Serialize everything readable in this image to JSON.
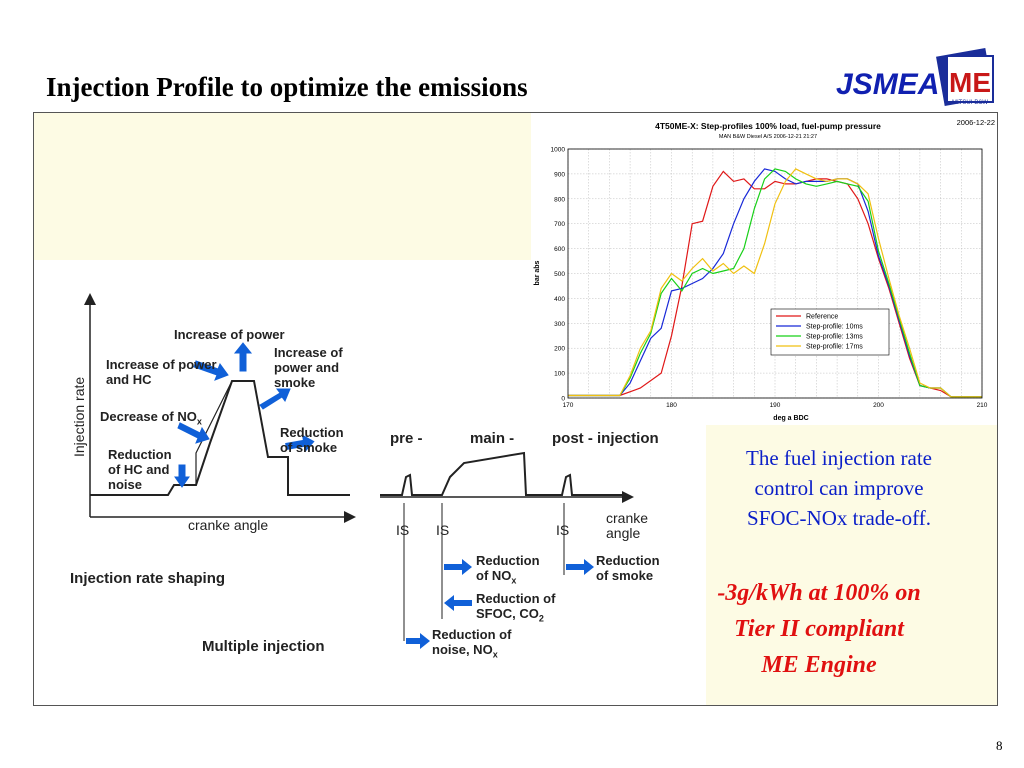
{
  "slide": {
    "title": "Injection Profile to optimize the emissions",
    "page_number": "8",
    "logo": {
      "text_left": "JSMEA",
      "text_right": "ME",
      "sublabel": "MITSUI·B&W"
    },
    "blue_text": [
      "The fuel injection rate",
      "control can improve",
      "SFOC-NOx trade-off."
    ],
    "red_text": [
      "-3g/kWh at 100% on",
      "Tier II compliant",
      "ME Engine"
    ]
  },
  "diagram": {
    "y_axis": "Injection rate",
    "x_axis": "cranke angle",
    "labels": {
      "increase_power": "Increase of power",
      "increase_power_hc": [
        "Increase of power",
        "and HC"
      ],
      "increase_power_smoke": [
        "Increase of",
        "power and",
        "smoke"
      ],
      "decrease_nox": "Decrease of NO",
      "decrease_nox_sub": "x",
      "reduction_hc_noise": [
        "Reduction",
        "of HC and",
        "noise"
      ],
      "reduction_smoke": [
        "Reduction",
        "of smoke"
      ],
      "caption": "Injection rate shaping"
    },
    "multi": {
      "pre": "pre -",
      "main": "main -",
      "post": "post - injection",
      "x_axis": [
        "cranke",
        "angle"
      ],
      "is_label": "IS",
      "red_nox": [
        "Reduction",
        "of NO"
      ],
      "red_nox_sub": "x",
      "red_smoke": [
        "Reduction",
        "of smoke"
      ],
      "red_sfoc": [
        "Reduction of",
        "SFOC, CO"
      ],
      "red_sfoc_sub": "2",
      "red_noise": [
        "Reduction of",
        "noise, NO"
      ],
      "red_noise_sub": "x",
      "caption": "Multiple injection"
    }
  },
  "chart_data": {
    "type": "line",
    "title": "4T50ME-X: Step-profiles 100% load, fuel-pump pressure",
    "subtitle": "MAN B&W Diesel A/S   2006-12-21  21:27",
    "date_label": "2006-12-22",
    "xlabel": "deg a BDC",
    "ylabel": "bar abs",
    "xlim": [
      170,
      210
    ],
    "ylim": [
      0,
      1000
    ],
    "xticks": [
      170,
      180,
      190,
      200,
      210
    ],
    "yticks": [
      0,
      100,
      200,
      300,
      400,
      500,
      600,
      700,
      800,
      900,
      1000
    ],
    "grid": true,
    "legend_position": "center-right",
    "series": [
      {
        "name": "Reference",
        "color": "#e01818",
        "x": [
          170,
          175,
          177,
          179,
          180,
          181,
          182,
          183,
          184,
          185,
          186,
          187,
          188,
          189,
          190,
          191,
          192,
          193,
          194,
          195,
          196,
          197,
          198,
          199,
          200,
          201,
          202,
          203,
          204,
          205,
          206,
          207,
          210
        ],
        "y": [
          10,
          10,
          40,
          100,
          250,
          450,
          700,
          710,
          850,
          910,
          870,
          880,
          840,
          840,
          870,
          860,
          860,
          870,
          880,
          880,
          870,
          860,
          800,
          700,
          560,
          440,
          300,
          160,
          50,
          40,
          30,
          5,
          5
        ]
      },
      {
        "name": "Step-profile: 10ms",
        "color": "#1828d8",
        "x": [
          170,
          175,
          176,
          177,
          178,
          179,
          180,
          181,
          182,
          183,
          184,
          185,
          186,
          187,
          188,
          189,
          190,
          191,
          192,
          193,
          194,
          195,
          196,
          197,
          198,
          199,
          200,
          201,
          202,
          203,
          204,
          205,
          206,
          207,
          210
        ],
        "y": [
          10,
          10,
          60,
          150,
          240,
          280,
          430,
          440,
          460,
          480,
          520,
          580,
          700,
          800,
          870,
          920,
          910,
          880,
          860,
          870,
          870,
          870,
          880,
          880,
          860,
          750,
          570,
          450,
          310,
          170,
          50,
          40,
          40,
          5,
          5
        ]
      },
      {
        "name": "Step-profile: 13ms",
        "color": "#18d018",
        "x": [
          170,
          175,
          176,
          177,
          178,
          179,
          180,
          181,
          182,
          183,
          184,
          185,
          186,
          187,
          188,
          189,
          190,
          191,
          192,
          193,
          194,
          195,
          196,
          197,
          198,
          199,
          200,
          201,
          202,
          203,
          204,
          205,
          206,
          207,
          210
        ],
        "y": [
          10,
          10,
          80,
          180,
          260,
          420,
          480,
          430,
          500,
          520,
          500,
          510,
          520,
          600,
          760,
          880,
          920,
          910,
          880,
          860,
          850,
          860,
          870,
          860,
          850,
          790,
          590,
          460,
          320,
          180,
          50,
          40,
          40,
          5,
          5
        ]
      },
      {
        "name": "Step-profile: 17ms",
        "color": "#f0c010",
        "x": [
          170,
          175,
          176,
          177,
          178,
          179,
          180,
          181,
          182,
          183,
          184,
          185,
          186,
          187,
          188,
          189,
          190,
          191,
          192,
          193,
          194,
          195,
          196,
          197,
          198,
          199,
          200,
          201,
          202,
          203,
          204,
          205,
          206,
          207,
          210
        ],
        "y": [
          10,
          10,
          90,
          200,
          270,
          440,
          500,
          470,
          520,
          560,
          510,
          540,
          500,
          530,
          500,
          620,
          780,
          870,
          920,
          900,
          880,
          870,
          880,
          880,
          860,
          820,
          640,
          480,
          330,
          200,
          60,
          40,
          40,
          5,
          5
        ]
      }
    ]
  }
}
